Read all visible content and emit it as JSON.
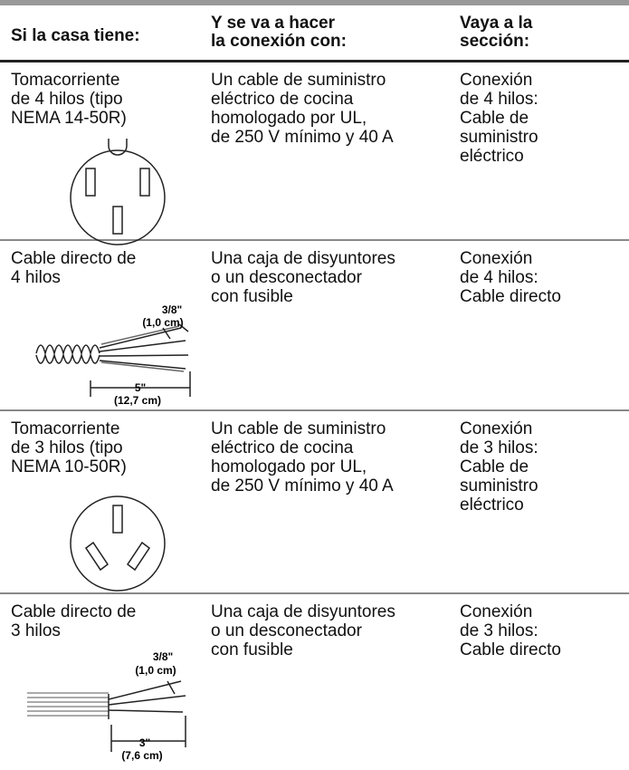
{
  "table": {
    "header": [
      "Si la casa tiene:",
      "Y se va a hacer\nla conexión con:",
      "Vaya a la\nsección:"
    ],
    "rows": [
      {
        "cells": [
          "Tomacorriente\nde 4 hilos (tipo\nNEMA 14-50R)",
          "Un cable de suministro\neléctrico de cocina\nhomologado por UL,\nde 250 V mínimo y 40 A",
          "Conexión\nde 4 hilos:\nCable de\nsuministro\neléctrico"
        ]
      },
      {
        "cells": [
          "Cable directo de\n4 hilos",
          "Una caja de disyuntores\no un desconectador\ncon fusible",
          "Conexión\nde 4 hilos:\nCable directo"
        ],
        "figure_labels": [
          "3/8\"",
          "(1,0 cm)",
          "5\"",
          "(12,7 cm)"
        ]
      },
      {
        "cells": [
          "Tomacorriente\nde 3 hilos (tipo\nNEMA 10-50R)",
          "Un cable de suministro\neléctrico de cocina\nhomologado por UL,\nde 250 V mínimo y 40 A",
          "Conexión\nde 3 hilos:\nCable de\nsuministro\neléctrico"
        ]
      },
      {
        "cells": [
          "Cable directo de\n3 hilos",
          "Una caja de disyuntores\no un desconectador\ncon fusible",
          "Conexión\nde 3 hilos:\nCable directo"
        ],
        "figure_labels": [
          "3/8\"",
          "(1,0 cm)",
          "3\"",
          "(7,6 cm)"
        ]
      }
    ]
  }
}
